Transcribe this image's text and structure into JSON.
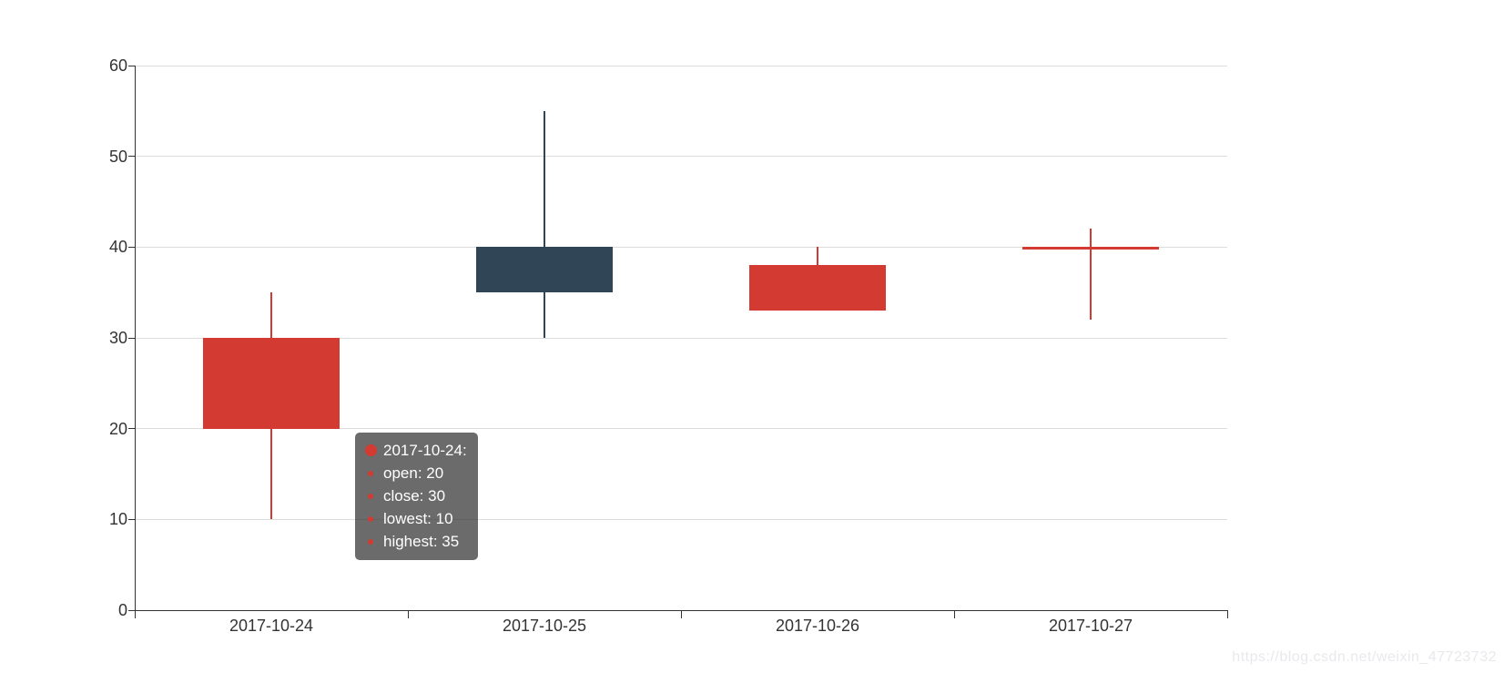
{
  "chart_data": {
    "type": "candlestick",
    "title": "",
    "xlabel": "",
    "ylabel": "",
    "categories": [
      "2017-10-24",
      "2017-10-25",
      "2017-10-26",
      "2017-10-27"
    ],
    "value_format": [
      "open",
      "close",
      "lowest",
      "highest"
    ],
    "series": [
      {
        "name": "candlestick",
        "values": [
          [
            20,
            30,
            10,
            35
          ],
          [
            40,
            35,
            30,
            55
          ],
          [
            33,
            38,
            33,
            40
          ],
          [
            40,
            40,
            32,
            42
          ]
        ]
      }
    ],
    "ylim": [
      0,
      60
    ],
    "y_ticks": [
      "0",
      "10",
      "20",
      "30",
      "40",
      "50",
      "60"
    ],
    "grid": "horizontal",
    "legend": "none",
    "up_color": "#d33a32",
    "down_color": "#304656"
  },
  "tooltip": {
    "title": "2017-10-24:",
    "items": [
      "open: 20",
      "close: 30",
      "lowest: 10",
      "highest: 35"
    ],
    "marker_color": "#d33a32"
  },
  "watermark": "https://blog.csdn.net/weixin_47723732",
  "colors": {
    "axis": "#333333",
    "grid": "#dddddd",
    "label": "#333333",
    "tooltip_bg": "rgba(50,50,50,0.72)"
  }
}
